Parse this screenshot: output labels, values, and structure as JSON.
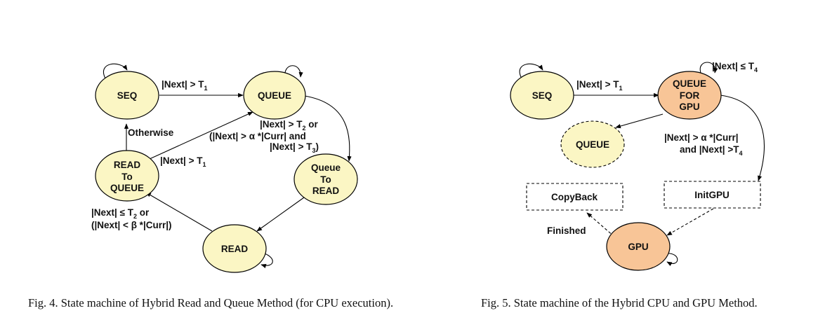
{
  "fig4": {
    "states": {
      "seq": "SEQ",
      "queue": "QUEUE",
      "read_to_queue": [
        "READ",
        "To",
        "QUEUE"
      ],
      "queue_to_read": [
        "Queue",
        "To",
        "READ"
      ],
      "read": "READ"
    },
    "labels": {
      "seq_queue": "|Next| > T",
      "seq_queue_sub": "1",
      "otherwise": "Otherwise",
      "rq_queue": "|Next| > T",
      "rq_queue_sub": "1",
      "queue_qr_l1": "|Next| > T",
      "queue_qr_l1_sub": "2",
      "queue_qr_l1_tail": " or",
      "queue_qr_l2": "(|Next| > α *|Curr| and",
      "queue_qr_l3": "|Next| > T",
      "queue_qr_l3_sub": "3",
      "queue_qr_l3_tail": ")",
      "read_rq_l1": "|Next| ≤ T",
      "read_rq_l1_sub": "2",
      "read_rq_l1_tail": " or",
      "read_rq_l2": "(|Next| < β *|Curr|)"
    },
    "caption": "Fig. 4.    State machine of Hybrid Read and Queue Method (for CPU execution)."
  },
  "fig5": {
    "states": {
      "seq": "SEQ",
      "queue_for_gpu": [
        "QUEUE",
        "FOR",
        "GPU"
      ],
      "queue": "QUEUE",
      "gpu": "GPU"
    },
    "boxes": {
      "copyback": "CopyBack",
      "initgpu": "InitGPU"
    },
    "labels": {
      "seq_qfg": "|Next| > T",
      "seq_qfg_sub": "1",
      "self_loop": "|Next| ≤ T",
      "self_loop_sub": "4",
      "qfg_init_l1": "|Next| > α *|Curr|",
      "qfg_init_l2": "and |Next| >T",
      "qfg_init_l2_sub": "4",
      "finished": "Finished"
    },
    "caption": "Fig. 5.    State machine of the Hybrid CPU and GPU Method."
  },
  "colors": {
    "state_fill": "#fbf6c4",
    "gpu_fill": "#f8c597",
    "stroke": "#000000"
  }
}
